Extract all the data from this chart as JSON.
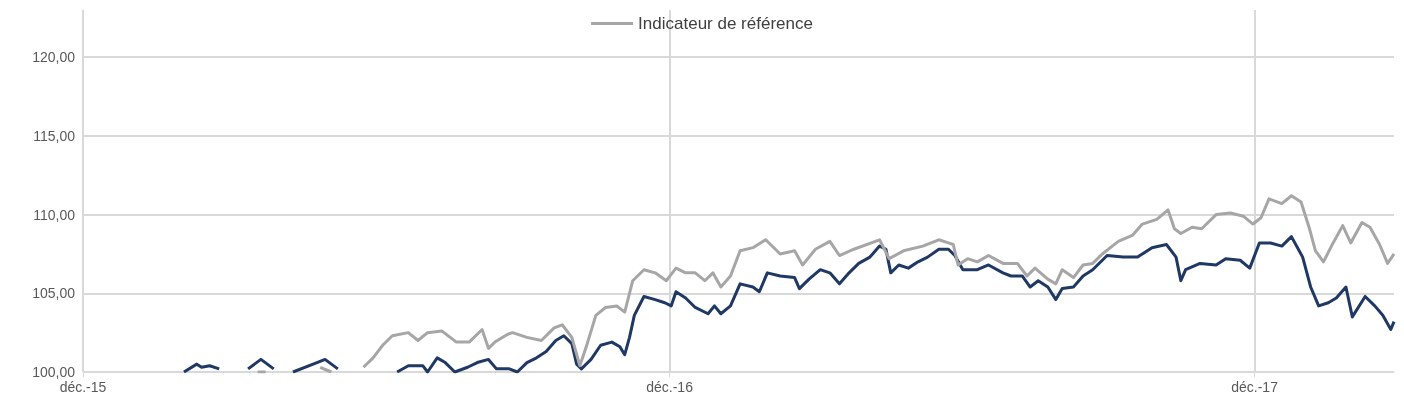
{
  "chart_data": {
    "type": "line",
    "legend": "top",
    "grid": true,
    "marker": "none",
    "xlim": [
      "2015-12-01",
      "2018-02-26"
    ],
    "xticks": [
      {
        "value": "2015-12-01",
        "label": "déc.-15"
      },
      {
        "value": "2016-12-01",
        "label": "déc.-16"
      },
      {
        "value": "2017-12-01",
        "label": "déc.-17"
      }
    ],
    "ylim": [
      100,
      123
    ],
    "yticks": [
      {
        "value": 100,
        "label": "100,00"
      },
      {
        "value": 105,
        "label": "105,00"
      },
      {
        "value": 110,
        "label": "110,00"
      },
      {
        "value": 115,
        "label": "115,00"
      },
      {
        "value": 120,
        "label": "120,00"
      }
    ],
    "series": [
      {
        "color": "#1f3864",
        "x": [
          "2016-02-02",
          "2016-02-10",
          "2016-02-13",
          "2016-02-18",
          "2016-02-24",
          "2016-03-05",
          "2016-03-13",
          "2016-03-21",
          "2016-03-29",
          "2016-04-03",
          "2016-04-10",
          "2016-04-25",
          "2016-04-30",
          "2016-05-08",
          "2016-05-20",
          "2016-06-14",
          "2016-06-21",
          "2016-06-30",
          "2016-07-03",
          "2016-07-09",
          "2016-07-14",
          "2016-07-20",
          "2016-07-28",
          "2016-08-03",
          "2016-08-10",
          "2016-08-15",
          "2016-08-23",
          "2016-08-28",
          "2016-09-03",
          "2016-09-09",
          "2016-09-15",
          "2016-09-21",
          "2016-09-26",
          "2016-10-01",
          "2016-10-04",
          "2016-10-07",
          "2016-10-13",
          "2016-10-19",
          "2016-10-26",
          "2016-10-31",
          "2016-11-03",
          "2016-11-06",
          "2016-11-09",
          "2016-11-15",
          "2016-11-22",
          "2016-11-28",
          "2016-12-02",
          "2016-12-05",
          "2016-12-11",
          "2016-12-17",
          "2016-12-25",
          "2016-12-29",
          "2017-01-02",
          "2017-01-08",
          "2017-01-14",
          "2017-01-22",
          "2017-01-26",
          "2017-01-31",
          "2017-02-08",
          "2017-02-17",
          "2017-02-20",
          "2017-02-26",
          "2017-03-05",
          "2017-03-11",
          "2017-03-17",
          "2017-03-23",
          "2017-03-29",
          "2017-04-05",
          "2017-04-11",
          "2017-04-15",
          "2017-04-18",
          "2017-04-23",
          "2017-04-29",
          "2017-05-05",
          "2017-05-11",
          "2017-05-18",
          "2017-05-24",
          "2017-05-28",
          "2017-06-02",
          "2017-06-11",
          "2017-06-18",
          "2017-06-27",
          "2017-07-02",
          "2017-07-09",
          "2017-07-14",
          "2017-07-19",
          "2017-07-25",
          "2017-07-30",
          "2017-08-03",
          "2017-08-10",
          "2017-08-16",
          "2017-08-22",
          "2017-08-31",
          "2017-09-10",
          "2017-09-19",
          "2017-09-28",
          "2017-10-07",
          "2017-10-13",
          "2017-10-16",
          "2017-10-19",
          "2017-10-28",
          "2017-11-07",
          "2017-11-13",
          "2017-11-22",
          "2017-11-28",
          "2017-12-04",
          "2017-12-11",
          "2017-12-18",
          "2017-12-24",
          "2017-12-31",
          "2018-01-05",
          "2018-01-10",
          "2018-01-16",
          "2018-01-21",
          "2018-01-27",
          "2018-01-31",
          "2018-02-08",
          "2018-02-14",
          "2018-02-19",
          "2018-02-24",
          "2018-02-26"
        ],
        "values": [
          100.0,
          100.5,
          100.3,
          100.4,
          100.2,
          null,
          100.2,
          100.8,
          100.2,
          null,
          100.0,
          100.6,
          100.8,
          100.2,
          null,
          100.0,
          100.4,
          100.4,
          100.0,
          100.9,
          100.6,
          100.0,
          100.3,
          100.6,
          100.8,
          100.2,
          100.2,
          100.0,
          100.6,
          100.9,
          101.3,
          102.0,
          102.3,
          101.8,
          100.5,
          100.2,
          100.8,
          101.7,
          101.9,
          101.6,
          101.1,
          102.2,
          103.6,
          104.8,
          104.6,
          104.4,
          104.2,
          105.1,
          104.7,
          104.1,
          103.7,
          104.2,
          103.7,
          104.2,
          105.6,
          105.4,
          105.1,
          106.3,
          106.1,
          106.0,
          105.3,
          105.9,
          106.5,
          106.3,
          105.6,
          106.3,
          106.9,
          107.3,
          108.0,
          107.8,
          106.3,
          106.8,
          106.6,
          107.0,
          107.3,
          107.8,
          107.8,
          107.4,
          106.5,
          106.5,
          106.8,
          106.3,
          106.1,
          106.1,
          105.4,
          105.8,
          105.4,
          104.6,
          105.3,
          105.4,
          106.1,
          106.5,
          107.4,
          107.3,
          107.3,
          107.9,
          108.1,
          107.3,
          105.8,
          106.5,
          106.9,
          106.8,
          107.2,
          107.1,
          106.6,
          108.2,
          108.2,
          108.0,
          108.6,
          107.3,
          105.4,
          104.2,
          104.4,
          104.7,
          105.4,
          103.5,
          104.8,
          104.2,
          103.6,
          102.7,
          103.2
        ]
      },
      {
        "name": "Indicateur de référence",
        "color": "#a6a6a6",
        "x": [
          "2016-03-19",
          "2016-03-24",
          "2016-04-01",
          "2016-04-27",
          "2016-05-04",
          "2016-05-15",
          "2016-05-24",
          "2016-05-30",
          "2016-06-05",
          "2016-06-11",
          "2016-06-21",
          "2016-06-27",
          "2016-07-03",
          "2016-07-12",
          "2016-07-21",
          "2016-07-29",
          "2016-08-06",
          "2016-08-10",
          "2016-08-14",
          "2016-08-22",
          "2016-08-25",
          "2016-09-03",
          "2016-09-12",
          "2016-09-20",
          "2016-09-25",
          "2016-10-01",
          "2016-10-06",
          "2016-10-10",
          "2016-10-16",
          "2016-10-22",
          "2016-10-29",
          "2016-11-03",
          "2016-11-08",
          "2016-11-15",
          "2016-11-22",
          "2016-11-29",
          "2016-12-05",
          "2016-12-11",
          "2016-12-17",
          "2016-12-23",
          "2016-12-28",
          "2017-01-02",
          "2017-01-08",
          "2017-01-14",
          "2017-01-22",
          "2017-01-30",
          "2017-02-08",
          "2017-02-17",
          "2017-02-22",
          "2017-03-02",
          "2017-03-11",
          "2017-03-17",
          "2017-03-26",
          "2017-04-11",
          "2017-04-17",
          "2017-04-26",
          "2017-05-08",
          "2017-05-18",
          "2017-05-24",
          "2017-05-27",
          "2017-05-30",
          "2017-06-05",
          "2017-06-11",
          "2017-06-18",
          "2017-06-27",
          "2017-07-06",
          "2017-07-12",
          "2017-07-17",
          "2017-07-25",
          "2017-07-30",
          "2017-08-03",
          "2017-08-10",
          "2017-08-16",
          "2017-08-22",
          "2017-08-28",
          "2017-09-07",
          "2017-09-16",
          "2017-09-22",
          "2017-10-01",
          "2017-10-08",
          "2017-10-12",
          "2017-10-16",
          "2017-10-23",
          "2017-10-29",
          "2017-11-07",
          "2017-11-16",
          "2017-11-24",
          "2017-11-30",
          "2017-12-05",
          "2017-12-10",
          "2017-12-18",
          "2017-12-24",
          "2017-12-30",
          "2018-01-04",
          "2018-01-08",
          "2018-01-13",
          "2018-01-19",
          "2018-01-25",
          "2018-01-30",
          "2018-02-06",
          "2018-02-11",
          "2018-02-17",
          "2018-02-22",
          "2018-02-26"
        ],
        "values": [
          100.0,
          100.0,
          null,
          100.3,
          100.0,
          null,
          100.3,
          100.9,
          101.7,
          102.3,
          102.5,
          102.0,
          102.5,
          102.6,
          101.9,
          101.9,
          102.7,
          101.5,
          101.9,
          102.4,
          102.5,
          102.2,
          102.0,
          102.8,
          103.0,
          102.2,
          100.4,
          101.6,
          103.6,
          104.1,
          104.2,
          103.8,
          105.8,
          106.5,
          106.3,
          105.8,
          106.6,
          106.3,
          106.3,
          105.8,
          106.3,
          105.4,
          106.1,
          107.7,
          107.9,
          108.4,
          107.5,
          107.7,
          106.8,
          107.8,
          108.3,
          107.4,
          107.8,
          108.4,
          107.2,
          107.7,
          108.0,
          108.4,
          108.2,
          108.1,
          106.8,
          107.2,
          107.0,
          107.4,
          106.9,
          106.9,
          106.1,
          106.6,
          105.9,
          105.6,
          106.5,
          106.0,
          106.8,
          106.9,
          107.5,
          108.3,
          108.7,
          109.4,
          109.7,
          110.3,
          109.1,
          108.8,
          109.2,
          109.1,
          110.0,
          110.1,
          109.9,
          109.4,
          109.8,
          111.0,
          110.7,
          111.2,
          110.8,
          109.2,
          107.7,
          107.0,
          108.2,
          109.3,
          108.2,
          109.5,
          109.2,
          108.1,
          106.9,
          107.5
        ]
      }
    ]
  }
}
